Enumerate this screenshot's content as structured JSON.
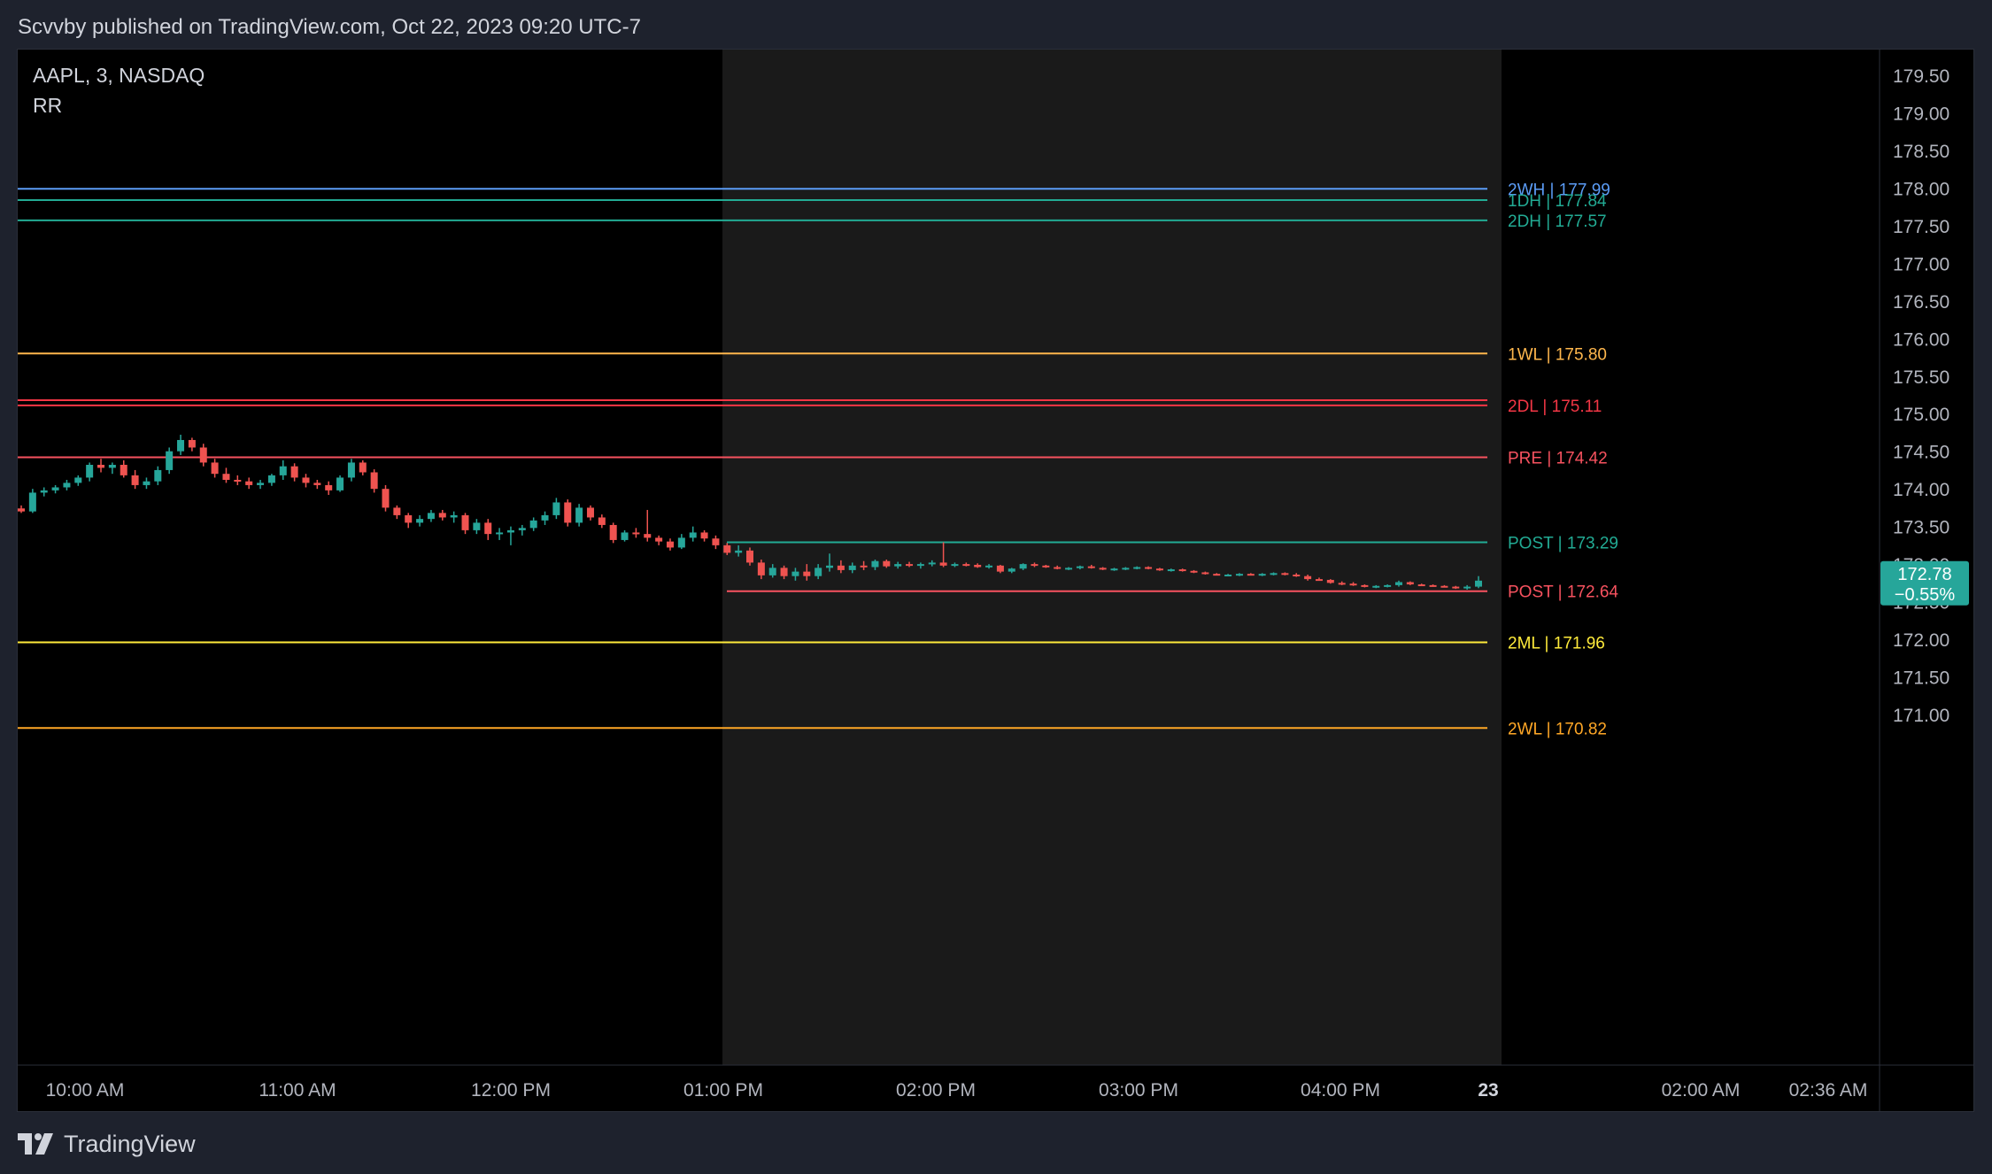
{
  "header": {
    "published_text": "Scvvby published on TradingView.com, Oct 22, 2023 09:20 UTC-7"
  },
  "footer": {
    "brand": "TradingView",
    "logo_icon": "tradingview-logo-icon"
  },
  "colors": {
    "background": "#000000",
    "frame": "#1e222d",
    "session_shade": "#1a1a1a",
    "up_candle": "#26a69a",
    "down_candle": "#ef5350",
    "axis_text": "#b2b5be",
    "price_badge": "#26a69a"
  },
  "chart_data": {
    "type": "candlestick",
    "symbol_line": "AAPL, 3, NASDAQ",
    "indicator_label": "RR",
    "y_range": [
      170.7,
      179.7
    ],
    "y_ticks": [
      "179.50",
      "179.00",
      "178.50",
      "178.00",
      "177.50",
      "177.00",
      "176.50",
      "176.00",
      "175.50",
      "175.00",
      "174.50",
      "174.00",
      "173.50",
      "173.00",
      "172.50",
      "172.00",
      "171.50",
      "171.00"
    ],
    "x_ticks": [
      {
        "label": "10:00 AM",
        "time": "10:00"
      },
      {
        "label": "11:00 AM",
        "time": "11:00"
      },
      {
        "label": "12:00 PM",
        "time": "12:00"
      },
      {
        "label": "01:00 PM",
        "time": "13:00"
      },
      {
        "label": "02:00 PM",
        "time": "14:00"
      },
      {
        "label": "03:00 PM",
        "time": "15:00"
      },
      {
        "label": "04:00 PM",
        "time": "16:00"
      },
      {
        "label": "23",
        "time": "day-break",
        "bold": true
      },
      {
        "label": "02:00 AM",
        "time": "02:00"
      },
      {
        "label": "02:36 AM",
        "time": "02:36"
      }
    ],
    "extended_session": {
      "start": "13:00",
      "end": "16:40"
    },
    "levels": [
      {
        "label": "2WH | 177.99",
        "value": 177.99,
        "color": "#5b9cf6"
      },
      {
        "label": "1DH | 177.84",
        "value": 177.84,
        "color": "#22ab94"
      },
      {
        "label": "2DH | 177.57",
        "value": 177.57,
        "color": "#22ab94"
      },
      {
        "label": "1WL | 175.80",
        "value": 175.8,
        "color": "#ffb74d"
      },
      {
        "label": "",
        "value": 175.18,
        "color": "#f23645"
      },
      {
        "label": "2DL | 175.11",
        "value": 175.11,
        "color": "#f23645"
      },
      {
        "label": "PRE | 174.42",
        "value": 174.42,
        "color": "#f7525f"
      },
      {
        "label": "POST | 173.29",
        "value": 173.29,
        "color": "#22ab94"
      },
      {
        "label": "POST | 172.64",
        "value": 172.64,
        "color": "#f7525f"
      },
      {
        "label": "2ML | 171.96",
        "value": 171.96,
        "color": "#ffeb3b"
      },
      {
        "label": "2WL | 170.82",
        "value": 170.82,
        "color": "#ffa726"
      }
    ],
    "last_price": {
      "price": "172.78",
      "change": "−0.55%",
      "value": 172.78
    },
    "candles": [
      [
        173.74,
        173.78,
        173.68,
        173.7
      ],
      [
        173.7,
        174.0,
        173.68,
        173.95
      ],
      [
        173.95,
        174.02,
        173.9,
        173.98
      ],
      [
        173.98,
        174.05,
        173.94,
        174.02
      ],
      [
        174.02,
        174.12,
        173.98,
        174.08
      ],
      [
        174.08,
        174.18,
        174.04,
        174.15
      ],
      [
        174.15,
        174.35,
        174.1,
        174.32
      ],
      [
        174.32,
        174.4,
        174.22,
        174.28
      ],
      [
        174.28,
        174.35,
        174.2,
        174.32
      ],
      [
        174.32,
        174.38,
        174.15,
        174.18
      ],
      [
        174.18,
        174.25,
        174.0,
        174.05
      ],
      [
        174.05,
        174.15,
        174.0,
        174.1
      ],
      [
        174.1,
        174.3,
        174.05,
        174.25
      ],
      [
        174.25,
        174.55,
        174.2,
        174.5
      ],
      [
        174.5,
        174.72,
        174.45,
        174.65
      ],
      [
        174.65,
        174.68,
        174.5,
        174.55
      ],
      [
        174.55,
        174.6,
        174.3,
        174.35
      ],
      [
        174.35,
        174.4,
        174.15,
        174.2
      ],
      [
        174.2,
        174.28,
        174.08,
        174.12
      ],
      [
        174.12,
        174.18,
        174.05,
        174.1
      ],
      [
        174.1,
        174.15,
        174.0,
        174.05
      ],
      [
        174.05,
        174.12,
        174.0,
        174.08
      ],
      [
        174.08,
        174.2,
        174.04,
        174.18
      ],
      [
        174.18,
        174.38,
        174.12,
        174.3
      ],
      [
        174.3,
        174.34,
        174.1,
        174.15
      ],
      [
        174.15,
        174.2,
        174.02,
        174.08
      ],
      [
        174.08,
        174.12,
        174.0,
        174.05
      ],
      [
        174.05,
        174.1,
        173.92,
        173.98
      ],
      [
        173.98,
        174.18,
        173.96,
        174.15
      ],
      [
        174.15,
        174.4,
        174.1,
        174.35
      ],
      [
        174.35,
        174.38,
        174.18,
        174.22
      ],
      [
        174.22,
        174.26,
        173.95,
        174.0
      ],
      [
        174.0,
        174.05,
        173.7,
        173.75
      ],
      [
        173.75,
        173.78,
        173.6,
        173.65
      ],
      [
        173.65,
        173.68,
        173.48,
        173.55
      ],
      [
        173.55,
        173.65,
        173.5,
        173.6
      ],
      [
        173.6,
        173.72,
        173.56,
        173.68
      ],
      [
        173.68,
        173.72,
        173.58,
        173.62
      ],
      [
        173.62,
        173.7,
        173.55,
        173.65
      ],
      [
        173.65,
        173.68,
        173.4,
        173.45
      ],
      [
        173.45,
        173.6,
        173.4,
        173.55
      ],
      [
        173.55,
        173.6,
        173.32,
        173.4
      ],
      [
        173.4,
        173.48,
        173.32,
        173.42
      ],
      [
        173.42,
        173.5,
        173.25,
        173.45
      ],
      [
        173.45,
        173.52,
        173.38,
        173.48
      ],
      [
        173.48,
        173.62,
        173.44,
        173.58
      ],
      [
        173.58,
        173.7,
        173.52,
        173.65
      ],
      [
        173.65,
        173.88,
        173.6,
        173.82
      ],
      [
        173.82,
        173.86,
        173.5,
        173.55
      ],
      [
        173.55,
        173.8,
        173.5,
        173.75
      ],
      [
        173.75,
        173.78,
        173.58,
        173.62
      ],
      [
        173.62,
        173.66,
        173.48,
        173.52
      ],
      [
        173.52,
        173.55,
        173.28,
        173.32
      ],
      [
        173.32,
        173.45,
        173.3,
        173.42
      ],
      [
        173.42,
        173.48,
        173.35,
        173.4
      ],
      [
        173.4,
        173.72,
        173.3,
        173.35
      ],
      [
        173.35,
        173.38,
        173.25,
        173.3
      ],
      [
        173.3,
        173.34,
        173.18,
        173.22
      ],
      [
        173.22,
        173.4,
        173.2,
        173.35
      ],
      [
        173.35,
        173.5,
        173.3,
        173.42
      ],
      [
        173.42,
        173.45,
        173.3,
        173.34
      ],
      [
        173.34,
        173.38,
        173.2,
        173.25
      ],
      [
        173.25,
        173.28,
        173.12,
        173.15
      ],
      [
        173.15,
        173.25,
        173.1,
        173.18
      ],
      [
        173.18,
        173.22,
        172.98,
        173.02
      ],
      [
        173.02,
        173.06,
        172.8,
        172.85
      ],
      [
        172.85,
        173.0,
        172.82,
        172.95
      ],
      [
        172.95,
        172.98,
        172.8,
        172.84
      ],
      [
        172.84,
        172.95,
        172.78,
        172.9
      ],
      [
        172.9,
        173.0,
        172.78,
        172.84
      ],
      [
        172.84,
        173.0,
        172.8,
        172.95
      ],
      [
        172.95,
        173.14,
        172.9,
        172.98
      ],
      [
        172.98,
        173.05,
        172.88,
        172.92
      ],
      [
        172.92,
        173.02,
        172.88,
        172.98
      ],
      [
        172.98,
        173.04,
        172.92,
        172.96
      ],
      [
        172.96,
        173.06,
        172.92,
        173.04
      ],
      [
        173.04,
        173.06,
        172.95,
        172.97
      ],
      [
        172.97,
        173.03,
        172.94,
        173.0
      ],
      [
        173.0,
        173.03,
        172.96,
        172.98
      ],
      [
        172.98,
        173.02,
        172.94,
        173.0
      ],
      [
        173.0,
        173.05,
        172.97,
        173.02
      ],
      [
        173.02,
        173.29,
        172.96,
        172.98
      ],
      [
        172.98,
        173.02,
        172.96,
        173.0
      ],
      [
        173.0,
        173.02,
        172.97,
        172.99
      ],
      [
        172.99,
        173.01,
        172.95,
        172.96
      ],
      [
        172.96,
        173.0,
        172.94,
        172.98
      ],
      [
        172.98,
        172.99,
        172.88,
        172.9
      ],
      [
        172.9,
        172.95,
        172.88,
        172.94
      ],
      [
        172.94,
        173.01,
        172.92,
        173.0
      ],
      [
        173.0,
        173.02,
        172.96,
        172.98
      ],
      [
        172.98,
        172.99,
        172.95,
        172.96
      ],
      [
        172.96,
        172.98,
        172.93,
        172.94
      ],
      [
        172.94,
        172.96,
        172.92,
        172.95
      ],
      [
        172.95,
        172.98,
        172.93,
        172.97
      ],
      [
        172.97,
        172.99,
        172.94,
        172.95
      ],
      [
        172.95,
        172.96,
        172.92,
        172.93
      ],
      [
        172.93,
        172.95,
        172.91,
        172.94
      ],
      [
        172.94,
        172.96,
        172.92,
        172.95
      ],
      [
        172.95,
        172.97,
        172.93,
        172.96
      ],
      [
        172.96,
        172.97,
        172.93,
        172.94
      ],
      [
        172.94,
        172.95,
        172.91,
        172.92
      ],
      [
        172.92,
        172.94,
        172.9,
        172.93
      ],
      [
        172.93,
        172.94,
        172.9,
        172.91
      ],
      [
        172.91,
        172.92,
        172.88,
        172.89
      ],
      [
        172.89,
        172.9,
        172.86,
        172.87
      ],
      [
        172.87,
        172.88,
        172.85,
        172.86
      ],
      [
        172.86,
        172.87,
        172.84,
        172.86
      ],
      [
        172.86,
        172.88,
        172.84,
        172.87
      ],
      [
        172.87,
        172.88,
        172.85,
        172.86
      ],
      [
        172.86,
        172.88,
        172.84,
        172.87
      ],
      [
        172.87,
        172.89,
        172.85,
        172.88
      ],
      [
        172.88,
        172.89,
        172.85,
        172.86
      ],
      [
        172.86,
        172.88,
        172.83,
        172.84
      ],
      [
        172.84,
        172.86,
        172.78,
        172.8
      ],
      [
        172.8,
        172.82,
        172.78,
        172.79
      ],
      [
        172.79,
        172.8,
        172.74,
        172.75
      ],
      [
        172.75,
        172.77,
        172.72,
        172.74
      ],
      [
        172.74,
        172.76,
        172.71,
        172.72
      ],
      [
        172.72,
        172.73,
        172.69,
        172.7
      ],
      [
        172.7,
        172.72,
        172.68,
        172.71
      ],
      [
        172.71,
        172.73,
        172.69,
        172.72
      ],
      [
        172.72,
        172.78,
        172.7,
        172.76
      ],
      [
        172.76,
        172.77,
        172.72,
        172.73
      ],
      [
        172.73,
        172.74,
        172.71,
        172.72
      ],
      [
        172.72,
        172.73,
        172.7,
        172.71
      ],
      [
        172.71,
        172.72,
        172.69,
        172.7
      ],
      [
        172.7,
        172.71,
        172.67,
        172.68
      ],
      [
        172.68,
        172.72,
        172.66,
        172.7
      ],
      [
        172.7,
        172.84,
        172.68,
        172.78
      ]
    ]
  }
}
